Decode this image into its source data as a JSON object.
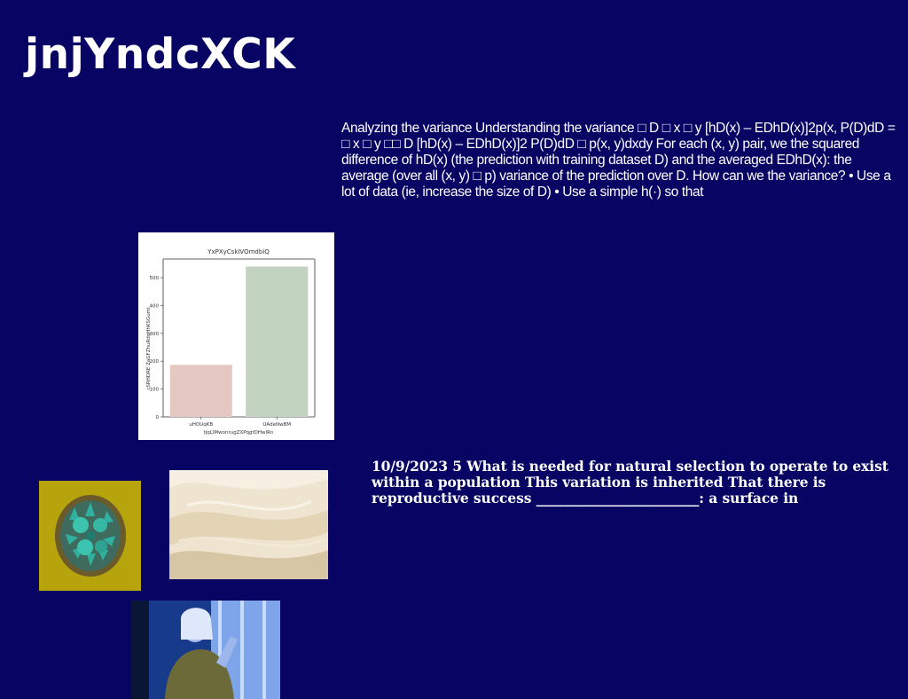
{
  "page": {
    "title": "jnjYndcXCK"
  },
  "paragraphs": {
    "variance_text": "Analyzing the variance Understanding the variance □ D □ x □ y [hD(x) – EDhD(x)]2p(x, P(D)dD = □ x □ y □□ D [hD(x) – EDhD(x)]2 P(D)dD □ p(x, y)dxdy For each (x, y) pair, we the squared difference of hD(x) (the prediction with training dataset D) and the averaged EDhD(x): the average (over all (x, y) □ p) variance of the prediction over D. How can we the variance? • Use a lot of data (ie, increase the size of D) • Use a simple h(·) so that",
    "selection_text": "10/9/2023 5 What is needed for natural selection to operate to exist within a population This variation is inherited That there is reproductive success ________________________: a surface in"
  },
  "chart_data": {
    "type": "bar",
    "title": "YxPXyCskIVOmdbiQ",
    "xlabel": "tjqLlMwonrugZXPqgtDHwlRn",
    "ylabel": "cSRHDRE ZaGFZhuRdqHhKSGuml",
    "categories": [
      "uHOUqKB",
      "UAdeNwBM"
    ],
    "values": [
      187,
      540
    ],
    "colors": [
      "#e6c8c3",
      "#c2d3bf"
    ],
    "yticks": [
      0,
      100,
      200,
      300,
      400,
      500
    ],
    "ylim": [
      0,
      567
    ],
    "grid": false
  },
  "images": {
    "plant_icon": "succulent-plant-photo",
    "sand_icon": "sand-dunes-photo",
    "person_icon": "person-at-window-photo"
  }
}
